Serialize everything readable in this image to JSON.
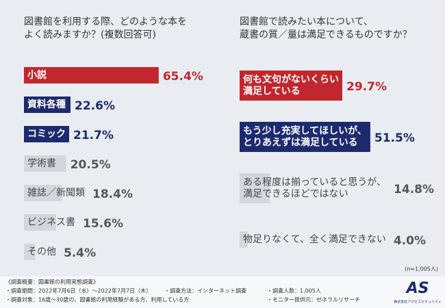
{
  "chart_data": [
    {
      "type": "bar",
      "orientation": "horizontal",
      "title": [
        "図書館を利用する際、どのような本を",
        "よく読みますか？(複数回答可)"
      ],
      "categories": [
        "小説",
        "資料各種",
        "コミック",
        "学術書",
        "雑誌／新聞類",
        "ビジネス書",
        "その他"
      ],
      "values": [
        65.4,
        22.6,
        21.7,
        20.5,
        18.4,
        15.6,
        5.4
      ],
      "value_labels": [
        "65.4%",
        "22.6%",
        "21.7%",
        "20.5%",
        "18.4%",
        "15.6%",
        "5.4%"
      ],
      "colors": [
        "#c1272d",
        "#1d2a6d",
        "#1d2a6d",
        "#d3d7dd",
        "#d3d7dd",
        "#d3d7dd",
        "#d3d7dd"
      ],
      "xlim": [
        0,
        100
      ]
    },
    {
      "type": "bar",
      "orientation": "horizontal",
      "title": [
        "図書館で読みたい本について、",
        "蔵書の質／量は満足できるものですか？"
      ],
      "categories": [
        "何も文句がないくらい\n満足している",
        "もう少し充実してほしいが、\nとりあえずは満足している",
        "ある程度は揃っていると思うが、\n満足できるほどではない",
        "物足りなくて、全く満足できない"
      ],
      "values": [
        29.7,
        51.5,
        14.8,
        4
      ],
      "value_labels": [
        "29.7%",
        "51.5%",
        "14.8%",
        "4.0%"
      ],
      "colors": [
        "#c1272d",
        "#1d2a6d",
        "#d3d7dd",
        "#d3d7dd"
      ],
      "xlim": [
        0,
        100
      ],
      "note": "(n=1,005人)"
    }
  ],
  "footer": {
    "heading": "《調査概要：図書館の利用実態調査》",
    "items": [
      "・調査期間：2022年7月6日（水）～2022年7月7日（木）",
      "・調査方法：インターネット調査",
      "・調査人数：1,005人",
      "・調査対象：16歳～30歳の、図書館の利用経験がある方、利用している方",
      "・モニター提供元：ゼネラルリサーチ"
    ],
    "logo": "AS",
    "company": "株式会社アクセスセキュリティ"
  }
}
